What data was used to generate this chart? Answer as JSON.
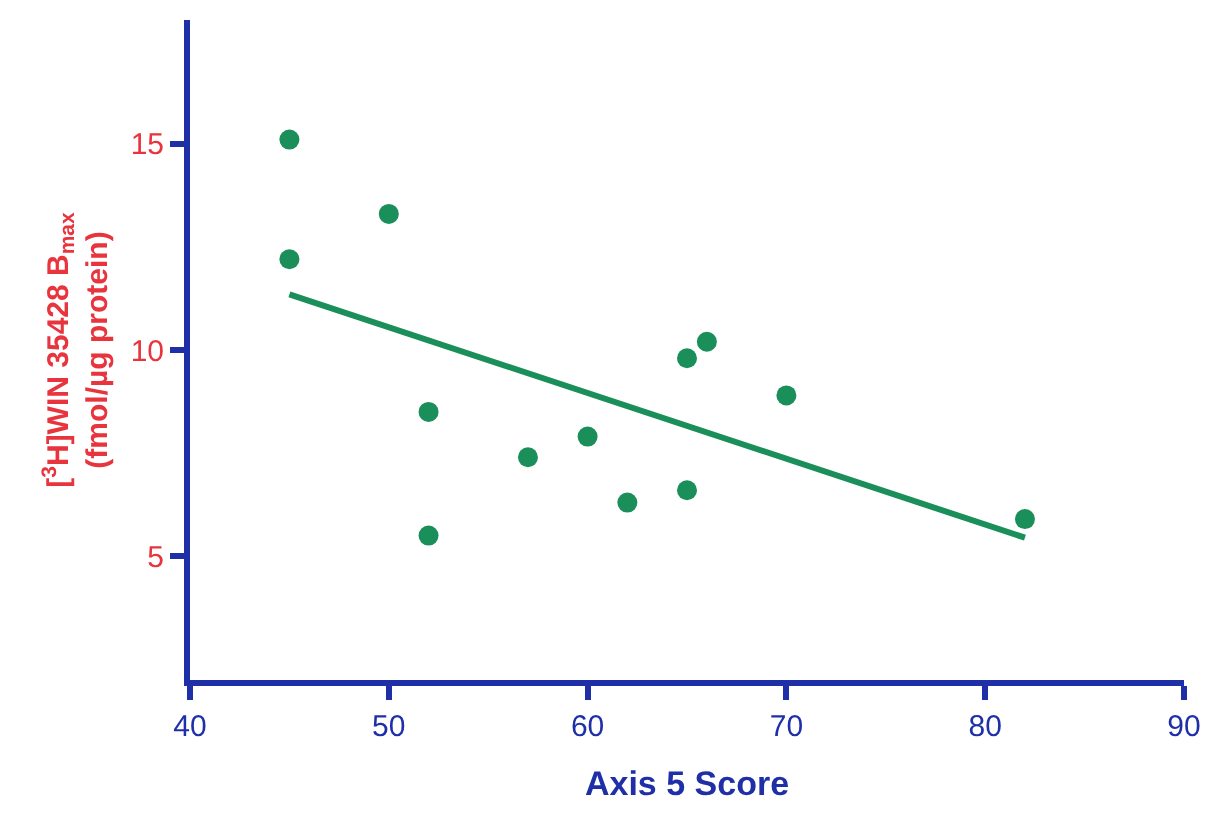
{
  "chart_data": {
    "type": "scatter",
    "xlabel": "Axis 5 Score",
    "ylabel": "[$^{3}$H]WIN 35428 B$_{max}$\n(fmol/µg protein)",
    "xlim": [
      40,
      90
    ],
    "xticks": [
      40,
      50,
      60,
      70,
      80,
      90
    ],
    "ylim": [
      2,
      18
    ],
    "yticks": [
      5,
      10,
      15
    ],
    "series": [
      {
        "marker": "circle",
        "color": "#1a8f5a",
        "x": [
          45,
          45,
          50,
          52,
          52,
          57,
          60,
          62,
          65,
          66,
          65,
          70,
          82
        ],
        "values": [
          15.1,
          12.2,
          13.3,
          8.5,
          5.5,
          7.4,
          7.9,
          6.3,
          9.8,
          10.2,
          6.6,
          8.9,
          5.9
        ]
      },
      {
        "type": "line",
        "color": "#1a8f5a",
        "x": [
          45,
          82
        ],
        "values": [
          11.35,
          5.45
        ]
      }
    ]
  }
}
